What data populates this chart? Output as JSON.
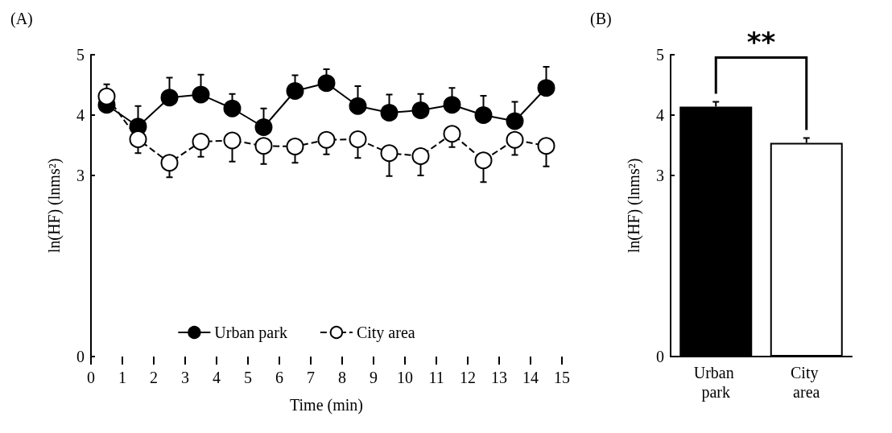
{
  "chart_data": [
    {
      "type": "line",
      "title": "(A)",
      "xlabel": "Time (min)",
      "ylabel": "ln(HF) (lnms²)",
      "x": [
        0.5,
        1.5,
        2.5,
        3.5,
        4.5,
        5.5,
        6.5,
        7.5,
        8.5,
        9.5,
        10.5,
        11.5,
        12.5,
        13.5,
        14.5
      ],
      "series": [
        {
          "name": "Urban park",
          "color": "#000000",
          "line_style": "solid",
          "values": [
            4.17,
            3.81,
            4.29,
            4.34,
            4.11,
            3.8,
            4.4,
            4.53,
            4.15,
            4.04,
            4.08,
            4.17,
            4.0,
            3.9,
            4.45
          ],
          "errors": [
            null,
            [
              3.81,
              4.15
            ],
            [
              4.29,
              4.62
            ],
            [
              4.34,
              4.67
            ],
            [
              4.11,
              4.35
            ],
            [
              3.8,
              4.11
            ],
            [
              4.4,
              4.66
            ],
            [
              4.53,
              4.76
            ],
            [
              4.15,
              4.48
            ],
            [
              4.04,
              4.34
            ],
            [
              4.08,
              4.35
            ],
            [
              4.17,
              4.45
            ],
            [
              4.0,
              4.32
            ],
            [
              3.9,
              4.22
            ],
            [
              4.45,
              4.8
            ]
          ]
        },
        {
          "name": "City area",
          "color": "#ffffff",
          "line_style": "dashed",
          "values": [
            4.31,
            3.6,
            3.21,
            3.56,
            3.58,
            3.49,
            3.48,
            3.59,
            3.6,
            3.37,
            3.32,
            3.69,
            3.25,
            3.59,
            3.49
          ],
          "errors": [
            [
              4.31,
              4.51
            ],
            [
              3.37,
              3.6
            ],
            [
              2.97,
              3.21
            ],
            [
              3.31,
              3.56
            ],
            [
              3.23,
              3.58
            ],
            [
              3.19,
              3.49
            ],
            [
              3.21,
              3.48
            ],
            [
              3.35,
              3.59
            ],
            [
              3.29,
              3.6
            ],
            [
              2.99,
              3.37
            ],
            [
              3.0,
              3.32
            ],
            [
              3.47,
              3.69
            ],
            [
              2.89,
              3.25
            ],
            [
              3.34,
              3.59
            ],
            [
              3.15,
              3.49
            ]
          ]
        }
      ],
      "marker": "circle",
      "xlim": [
        0,
        15
      ],
      "xticks": [
        0,
        1,
        2,
        3,
        4,
        5,
        6,
        7,
        8,
        9,
        10,
        11,
        12,
        13,
        14,
        15
      ],
      "ylim": [
        0,
        5
      ],
      "yticks": [
        0,
        3,
        4,
        5
      ],
      "grid": false,
      "legend": "bottom"
    },
    {
      "type": "bar",
      "title": "(B)",
      "ylabel": "ln(HF) (lnms²)",
      "categories": [
        "Urban park",
        "City area"
      ],
      "values": [
        4.14,
        3.54
      ],
      "colors": [
        "#000000",
        "#ffffff"
      ],
      "errors": [
        [
          4.14,
          4.22
        ],
        [
          3.54,
          3.62
        ]
      ],
      "ylim": [
        0,
        5
      ],
      "yticks": [
        0,
        3,
        4,
        5
      ],
      "grid": false,
      "legend": false,
      "annotations": [
        "**"
      ]
    }
  ]
}
